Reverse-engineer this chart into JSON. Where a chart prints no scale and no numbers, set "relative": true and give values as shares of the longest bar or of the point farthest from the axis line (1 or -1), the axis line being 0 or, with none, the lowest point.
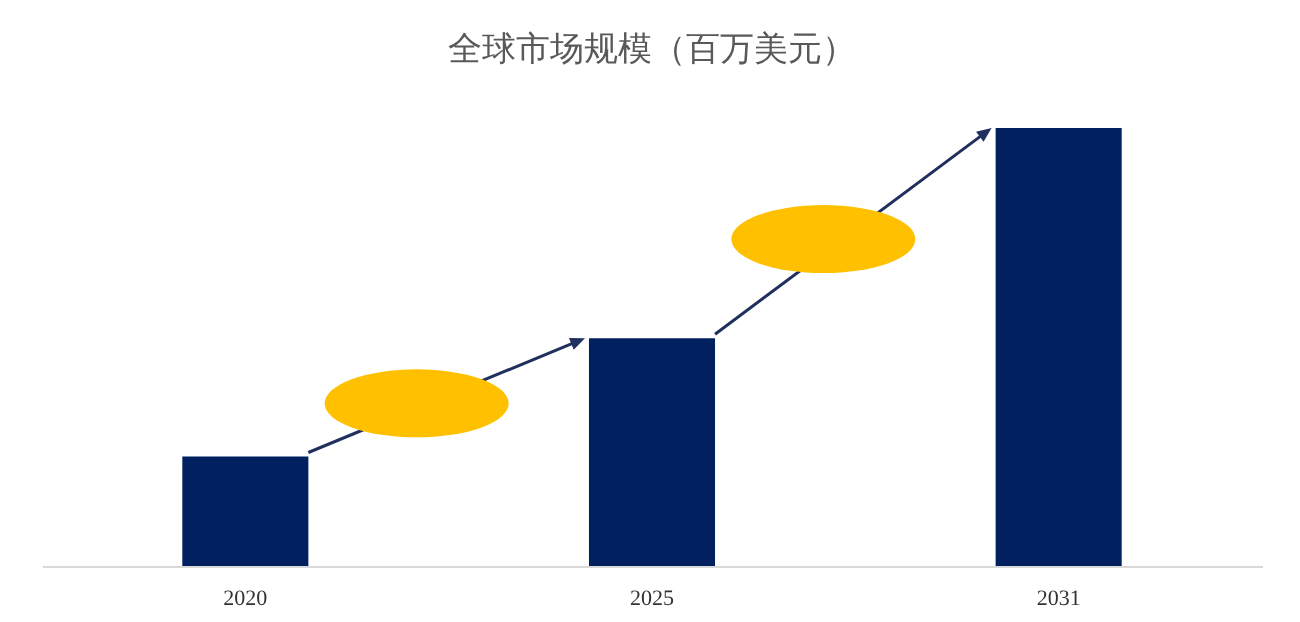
{
  "chart_data": {
    "type": "bar",
    "title": "全球市场规模（百万美元）",
    "categories": [
      "2020",
      "2025",
      "2031"
    ],
    "values": [
      0.25,
      0.52,
      1
    ],
    "color": "#002060",
    "relative": true,
    "grid": false
  }
}
